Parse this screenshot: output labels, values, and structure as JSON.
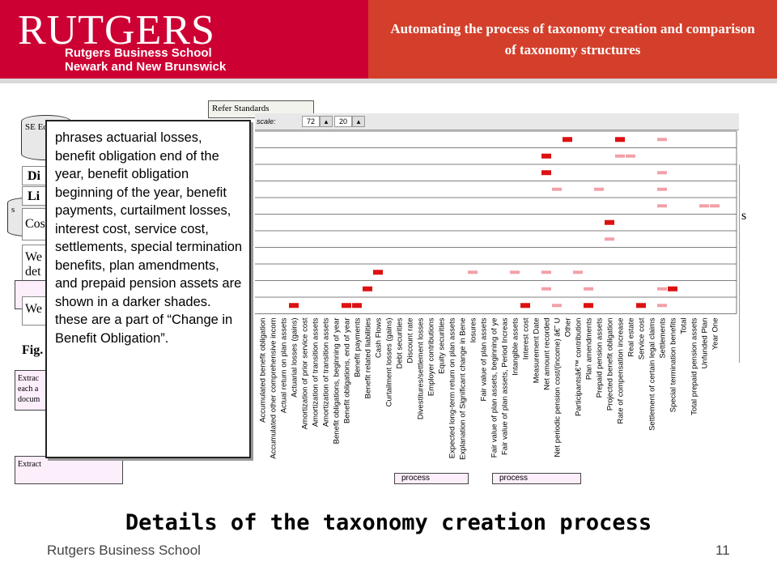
{
  "header": {
    "logo_word": "RUTGERS",
    "logo_line1": "Rutgers Business School",
    "logo_line2": "Newark and New Brunswick",
    "title": "Automating the process of taxonomy creation and comparison of taxonomy structures",
    "brand_color": "#cc0033"
  },
  "diagram": {
    "refer_standards": "Refer Standards",
    "cyl1_text": "SE Ed",
    "cyl2_text": "s",
    "frag1": "Di",
    "frag2": "Li",
    "frag3": "Cos",
    "frag4": "We det",
    "frag5": "We",
    "fig_label": "Fig.",
    "extract1": "Extrac each a docum",
    "extract2": "Extract",
    "process_left": "process",
    "process_right": "process",
    "right_fragment": "s"
  },
  "scale": {
    "label": "scale:",
    "value1": "72",
    "value2": "20"
  },
  "callout": {
    "text": "phrases actuarial losses, benefit obligation end of the year, benefit obligation beginning of the year, benefit payments, curtailment losses, interest cost, service cost, settlements, special termination benefits, plan amendments, and prepaid pension assets are shown in a darker shades. these are a part of “Change in Benefit Obligation”."
  },
  "chart_data": {
    "type": "heatmap",
    "categories": [
      "Accumulated benefit obligation",
      "Accumulated other comprehensive incom",
      "Actual return on plan assets",
      "Actuarial losses (gains)",
      "Amortization of prior service cost",
      "Amortization of transition assets",
      "Amortization of transition assets",
      "Benefit obligations, beginning of year",
      "Benefit obligations, end of year",
      "Benefit payments",
      "Benefit related liabilities",
      "Cash Flows",
      "Curtailment losses (gains)",
      "Debt securities",
      "Discount rate",
      "Divestitures/settlement losses",
      "Employer contributions",
      "Equity securities",
      "Expected long-term return on plan assets",
      "Explanation of Significant change in Bene",
      "losures",
      "Fair value of plan assets",
      "Fair value of plan assets, beginning of ye",
      "Fair value of plan assets, Period Increas",
      "Intangible assets",
      "Interest cost",
      "Measurement Date",
      "Net amount recorded",
      "Net periodic pension cost/(income) â€˜ U",
      "Other",
      "Participantsâ€™ contribution",
      "Plan amendments",
      "Prepaid pension assets",
      "Projected benefit obligation",
      "Rate of compensation increase",
      "Real estate",
      "Service cost",
      "Settlement of certain legal claims",
      "Settlements",
      "Special termination benefits",
      "Total",
      "Total prepaid pension assets",
      "Unfunded Plan",
      "Year One"
    ],
    "rows": 11,
    "cells": [
      {
        "col": 3,
        "row": 10,
        "level": "dark"
      },
      {
        "col": 8,
        "row": 10,
        "level": "dark"
      },
      {
        "col": 9,
        "row": 10,
        "level": "dark"
      },
      {
        "col": 10,
        "row": 9,
        "level": "dark"
      },
      {
        "col": 11,
        "row": 8,
        "level": "dark"
      },
      {
        "col": 25,
        "row": 10,
        "level": "dark"
      },
      {
        "col": 27,
        "row": 1,
        "level": "dark"
      },
      {
        "col": 27,
        "row": 2,
        "level": "dark"
      },
      {
        "col": 29,
        "row": 0,
        "level": "dark"
      },
      {
        "col": 31,
        "row": 10,
        "level": "dark"
      },
      {
        "col": 33,
        "row": 5,
        "level": "dark"
      },
      {
        "col": 34,
        "row": 0,
        "level": "dark"
      },
      {
        "col": 36,
        "row": 10,
        "level": "dark"
      },
      {
        "col": 39,
        "row": 9,
        "level": "dark"
      },
      {
        "col": 20,
        "row": 8,
        "level": "light"
      },
      {
        "col": 24,
        "row": 8,
        "level": "light"
      },
      {
        "col": 27,
        "row": 8,
        "level": "light"
      },
      {
        "col": 27,
        "row": 9,
        "level": "light"
      },
      {
        "col": 28,
        "row": 3,
        "level": "light"
      },
      {
        "col": 28,
        "row": 10,
        "level": "light"
      },
      {
        "col": 30,
        "row": 8,
        "level": "light"
      },
      {
        "col": 31,
        "row": 9,
        "level": "light"
      },
      {
        "col": 32,
        "row": 3,
        "level": "light"
      },
      {
        "col": 33,
        "row": 6,
        "level": "light"
      },
      {
        "col": 34,
        "row": 1,
        "level": "light"
      },
      {
        "col": 35,
        "row": 1,
        "level": "light"
      },
      {
        "col": 38,
        "row": 0,
        "level": "light"
      },
      {
        "col": 38,
        "row": 2,
        "level": "light"
      },
      {
        "col": 38,
        "row": 3,
        "level": "light"
      },
      {
        "col": 38,
        "row": 4,
        "level": "light"
      },
      {
        "col": 38,
        "row": 9,
        "level": "light"
      },
      {
        "col": 38,
        "row": 10,
        "level": "light"
      },
      {
        "col": 42,
        "row": 4,
        "level": "light"
      },
      {
        "col": 43,
        "row": 4,
        "level": "light"
      }
    ],
    "dark_color": "#dd1111",
    "light_color": "#f2a0a8"
  },
  "footer": {
    "title": "Details of the taxonomy creation process",
    "left": "Rutgers Business School",
    "page": "11"
  }
}
